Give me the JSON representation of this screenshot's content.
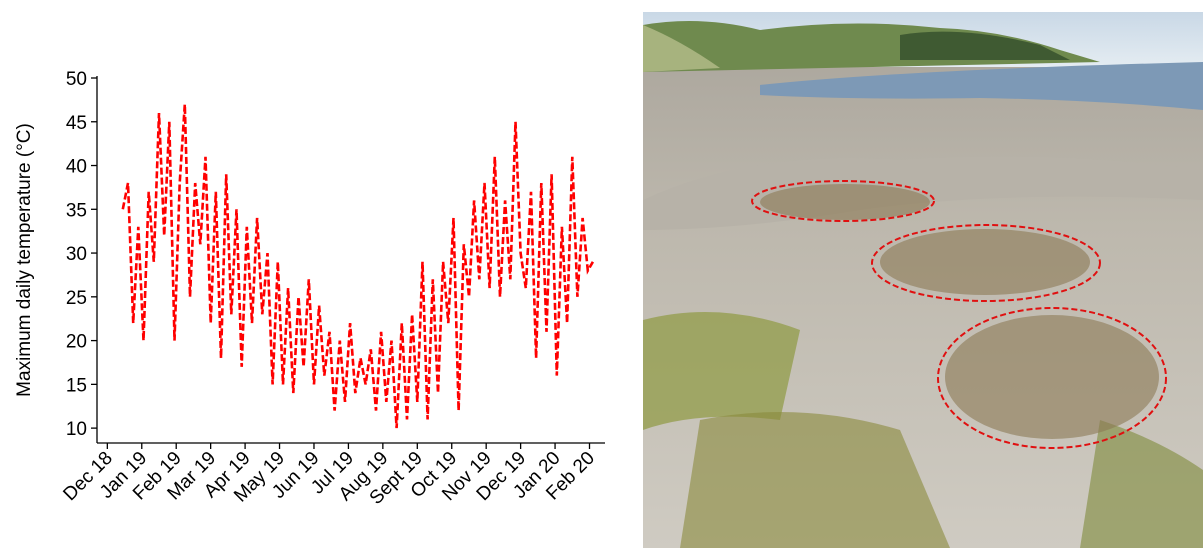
{
  "chart_data": {
    "type": "line",
    "ylabel": "Maximum daily temperature (°C)",
    "x": [
      0.45,
      0.6,
      0.75,
      0.9,
      1.05,
      1.2,
      1.35,
      1.5,
      1.65,
      1.8,
      1.95,
      2.1,
      2.25,
      2.4,
      2.55,
      2.7,
      2.85,
      3.0,
      3.15,
      3.3,
      3.45,
      3.6,
      3.75,
      3.9,
      4.05,
      4.2,
      4.35,
      4.5,
      4.65,
      4.8,
      4.95,
      5.1,
      5.25,
      5.4,
      5.55,
      5.7,
      5.85,
      6.0,
      6.15,
      6.3,
      6.45,
      6.6,
      6.75,
      6.9,
      7.05,
      7.2,
      7.35,
      7.5,
      7.65,
      7.8,
      7.95,
      8.1,
      8.25,
      8.4,
      8.55,
      8.7,
      8.85,
      9.0,
      9.15,
      9.3,
      9.45,
      9.6,
      9.75,
      9.9,
      10.05,
      10.2,
      10.35,
      10.5,
      10.65,
      10.8,
      10.95,
      11.1,
      11.25,
      11.4,
      11.55,
      11.7,
      11.85,
      12.0,
      12.15,
      12.3,
      12.45,
      12.6,
      12.75,
      12.9,
      13.05,
      13.2,
      13.35,
      13.5,
      13.65,
      13.8,
      13.95,
      14.1
    ],
    "series": [
      {
        "color": "#ff0000",
        "dashed": true,
        "values": [
          35,
          38,
          22,
          33,
          20,
          37,
          29,
          46,
          32,
          45,
          20,
          38,
          47,
          25,
          38,
          31,
          41,
          22,
          37,
          18,
          39,
          23,
          35,
          17,
          33,
          22,
          34,
          23,
          30,
          15,
          29,
          15,
          26,
          14,
          25,
          17,
          27,
          15,
          24,
          16,
          21,
          12,
          20,
          13,
          22,
          14,
          18,
          15,
          19,
          12,
          21,
          13,
          20,
          10,
          22,
          11,
          23,
          13,
          29,
          11,
          27,
          14,
          29,
          22,
          34,
          12,
          31,
          25,
          36,
          27,
          38,
          26,
          41,
          25,
          36,
          27,
          45,
          30,
          26,
          37,
          18,
          38,
          21,
          39,
          16,
          33,
          22,
          41,
          25,
          34,
          28,
          29
        ]
      }
    ],
    "xlim": [
      -0.3,
      14.45
    ],
    "xticks": [
      {
        "value": 0,
        "label": "Dec 18"
      },
      {
        "value": 1,
        "label": "Jan 19"
      },
      {
        "value": 2,
        "label": "Feb 19"
      },
      {
        "value": 3,
        "label": "Mar 19"
      },
      {
        "value": 4,
        "label": "Apr 19"
      },
      {
        "value": 5,
        "label": "May 19"
      },
      {
        "value": 6,
        "label": "Jun 19"
      },
      {
        "value": 7,
        "label": "Jul 19"
      },
      {
        "value": 8,
        "label": "Aug 19"
      },
      {
        "value": 9,
        "label": "Sept 19"
      },
      {
        "value": 10,
        "label": "Oct 19"
      },
      {
        "value": 11,
        "label": "Nov 19"
      },
      {
        "value": 12,
        "label": "Dec 19"
      },
      {
        "value": 13,
        "label": "Jan 20"
      },
      {
        "value": 14,
        "label": "Feb 20"
      }
    ],
    "ylim": [
      8.3,
      50
    ],
    "yticks": [
      10,
      15,
      20,
      25,
      30,
      35,
      40,
      45,
      50
    ]
  }
}
